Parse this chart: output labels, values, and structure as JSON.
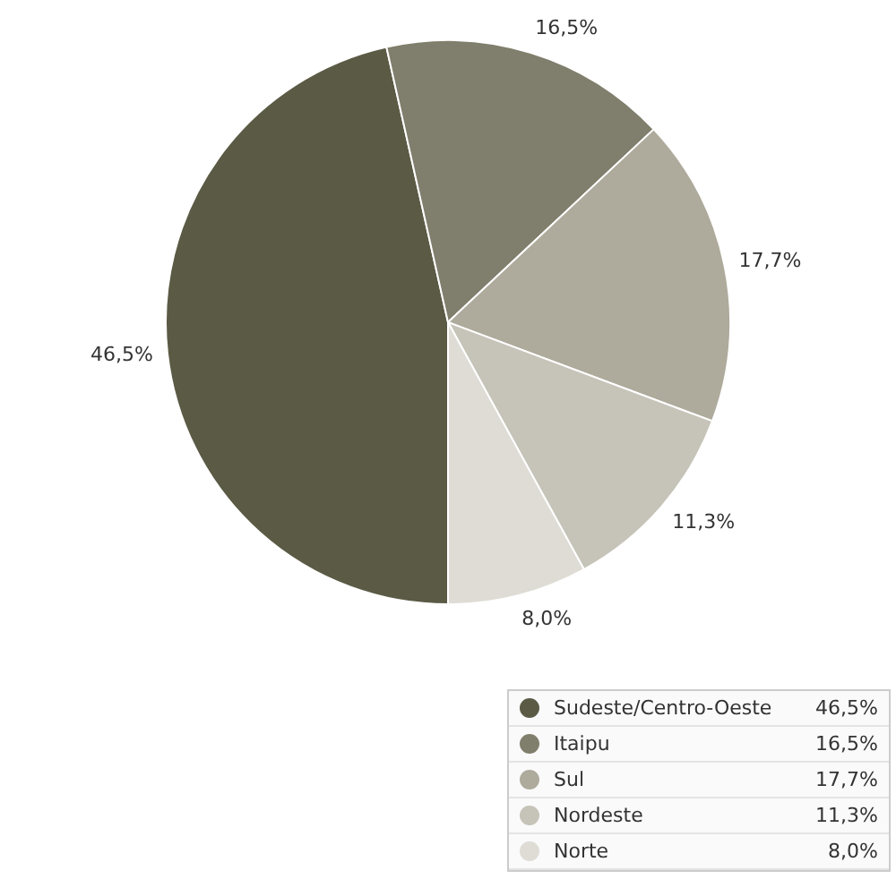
{
  "chart_data": {
    "type": "pie",
    "categories": [
      "Sudeste/Centro-Oeste",
      "Itaipu",
      "Sul",
      "Nordeste",
      "Norte"
    ],
    "values": [
      46.5,
      16.5,
      17.7,
      11.3,
      8.0
    ],
    "colors": [
      "#5b5a45",
      "#807e6c",
      "#aeaa9c",
      "#c6c3b8",
      "#dedcd5"
    ],
    "value_labels": [
      "46,5%",
      "16,5%",
      "17,7%",
      "11,3%",
      "8,0%"
    ],
    "legend": "bottom right"
  }
}
